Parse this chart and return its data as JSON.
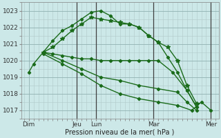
{
  "xlabel": "Pression niveau de la mer( hPa )",
  "bg_color": "#cce8e8",
  "grid_color": "#b0c8c8",
  "line_color": "#1a6b1a",
  "ylim": [
    1016.5,
    1023.5
  ],
  "xlim": [
    -0.3,
    20.3
  ],
  "series": [
    {
      "x": [
        0.5,
        1.0,
        2.0,
        3.0,
        4.0,
        5.0,
        6.0,
        7.0,
        8.0,
        9.0,
        10.0,
        11.0,
        12.0,
        13.0,
        14.0,
        15.0,
        16.0,
        17.0,
        18.0
      ],
      "y": [
        1019.3,
        1019.8,
        1020.5,
        1021.2,
        1021.8,
        1022.1,
        1022.5,
        1022.9,
        1023.0,
        1022.7,
        1022.2,
        1022.2,
        1022.0,
        1021.5,
        1021.1,
        1020.2,
        1019.3,
        1018.2,
        1017.2
      ]
    },
    {
      "x": [
        2.0,
        3.0,
        4.0,
        5.0,
        6.0,
        7.0,
        8.0,
        9.0,
        10.0,
        11.0,
        12.0,
        13.0,
        14.0,
        15.0,
        16.0,
        17.0,
        18.0
      ],
      "y": [
        1020.5,
        1020.8,
        1021.3,
        1021.8,
        1022.2,
        1022.6,
        1022.5,
        1022.4,
        1022.3,
        1022.2,
        1022.0,
        1021.5,
        1021.1,
        1020.8,
        1020.0,
        1018.5,
        1017.4
      ]
    },
    {
      "x": [
        2.0,
        3.0,
        4.0,
        5.0,
        6.0,
        7.0,
        8.0,
        9.0,
        10.0,
        11.0,
        12.0,
        13.0,
        14.0,
        15.5,
        17.0,
        18.0
      ],
      "y": [
        1020.5,
        1020.4,
        1020.3,
        1020.2,
        1020.1,
        1020.1,
        1020.0,
        1020.0,
        1020.0,
        1020.0,
        1020.0,
        1020.0,
        1020.0,
        1019.3,
        1018.2,
        1017.2
      ]
    },
    {
      "x": [
        2.0,
        4.0,
        6.0,
        8.0,
        10.0,
        12.0,
        14.0,
        16.0,
        17.0,
        18.0
      ],
      "y": [
        1020.5,
        1020.0,
        1019.5,
        1019.0,
        1018.8,
        1018.5,
        1018.3,
        1018.1,
        1017.5,
        1017.0
      ]
    },
    {
      "x": [
        2.0,
        4.0,
        6.0,
        8.0,
        10.0,
        12.0,
        14.0,
        16.0,
        17.5,
        18.5,
        19.5
      ],
      "y": [
        1020.4,
        1019.8,
        1019.2,
        1018.5,
        1018.0,
        1017.7,
        1017.5,
        1017.3,
        1017.0,
        1017.5,
        1017.0
      ]
    }
  ],
  "vline_positions": [
    5.5,
    7.5,
    13.5,
    19.5
  ],
  "xtick_positions": [
    0.5,
    5.5,
    7.5,
    13.5,
    19.5
  ],
  "xtick_labels": [
    "Dim",
    "Jeu",
    "Lun",
    "Mar",
    "Mer"
  ],
  "ytick_positions": [
    1017,
    1018,
    1019,
    1020,
    1021,
    1022,
    1023
  ]
}
